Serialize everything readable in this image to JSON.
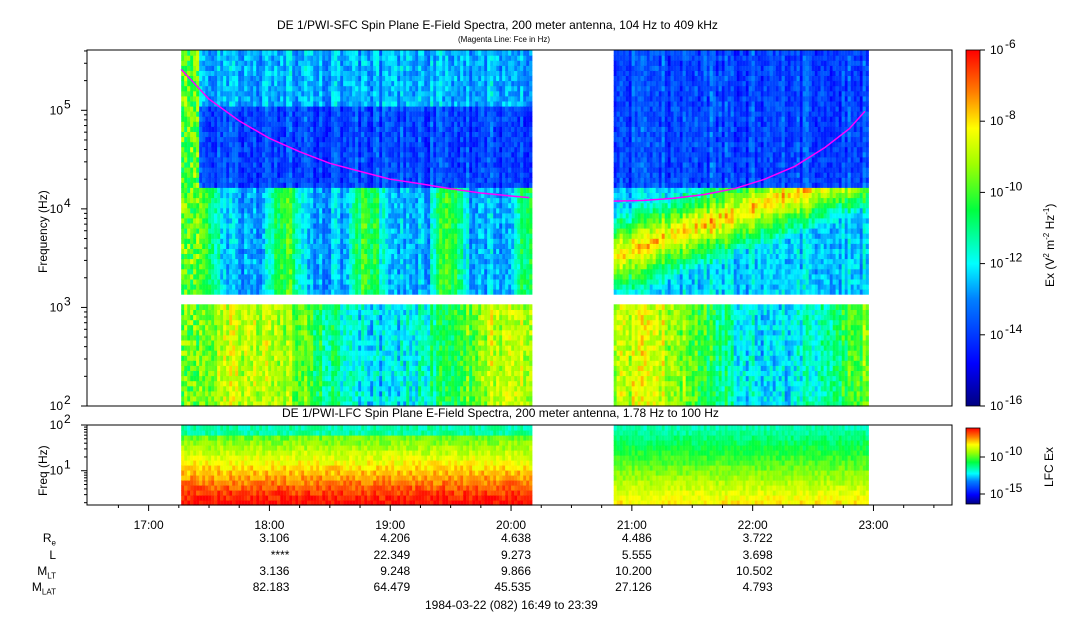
{
  "chart_data": [
    {
      "type": "heatmap",
      "title": "DE 1/PWI-SFC  Spin Plane E-Field Spectra, 200 meter antenna, 104 Hz to 409 kHz",
      "subtitle": "(Magenta Line: Fce in Hz)",
      "ylabel": "Frequency (Hz)",
      "yscale": "log",
      "ylim": [
        100,
        409000
      ],
      "yticks": [
        {
          "base": "10",
          "exp": "2",
          "value": 100
        },
        {
          "base": "10",
          "exp": "3",
          "value": 1000
        },
        {
          "base": "10",
          "exp": "4",
          "value": 10000
        },
        {
          "base": "10",
          "exp": "5",
          "value": 100000
        }
      ],
      "xlim_hours": [
        16.49,
        23.65
      ],
      "data_segments_hours": [
        [
          17.27,
          20.17
        ],
        [
          20.85,
          22.95
        ]
      ],
      "colorbar": {
        "label": "Ex (V² m⁻² Hz⁻¹)",
        "label_parts": {
          "a": "Ex (V",
          "b": "2",
          "c": " m",
          "d": "-2",
          "e": " Hz",
          "f": "-1",
          "g": ")"
        },
        "ticks": [
          {
            "base": "10",
            "exp": "-6",
            "value": 1e-06
          },
          {
            "base": "10",
            "exp": "-8",
            "value": 1e-08
          },
          {
            "base": "10",
            "exp": "-10",
            "value": 1e-10
          },
          {
            "base": "10",
            "exp": "-12",
            "value": 1e-12
          },
          {
            "base": "10",
            "exp": "-14",
            "value": 1e-14
          },
          {
            "base": "10",
            "exp": "-16",
            "value": 1e-16
          }
        ],
        "range": [
          1e-16,
          1e-06
        ]
      },
      "fce_line": {
        "name": "Fce",
        "color": "#ff00ff",
        "series": [
          {
            "hours": [
              17.27,
              17.5,
              17.75,
              18.0,
              18.25,
              18.5,
              18.75,
              19.0,
              19.25,
              19.5,
              19.75,
              20.0,
              20.15
            ],
            "freq_hz": [
              260000,
              130000,
              78000,
              52000,
              38000,
              29000,
              24000,
              20000,
              18000,
              16000,
              14500,
              13500,
              13000
            ]
          },
          {
            "hours": [
              20.85,
              21.1,
              21.35,
              21.6,
              21.85,
              22.1,
              22.35,
              22.6,
              22.8,
              22.93
            ],
            "freq_hz": [
              12000,
              12200,
              12800,
              14000,
              16000,
              20000,
              27000,
              42000,
              65000,
              98000
            ]
          }
        ]
      }
    },
    {
      "type": "heatmap",
      "title": "DE 1/PWI-LFC  Spin Plane E-Field Spectra, 200 meter antenna, 1.78 Hz to 100 Hz",
      "ylabel": "Freq (Hz)",
      "yscale": "log",
      "ylim": [
        1.78,
        100
      ],
      "yticks": [
        {
          "base": "10",
          "exp": "1",
          "value": 10
        },
        {
          "base": "10",
          "exp": "2",
          "value": 100
        }
      ],
      "data_segments_hours": [
        [
          17.27,
          20.17
        ],
        [
          20.85,
          22.95
        ]
      ],
      "colorbar": {
        "label": "LFC Ex",
        "ticks": [
          {
            "base": "10",
            "exp": "-10",
            "value": 1e-10
          },
          {
            "base": "10",
            "exp": "-15",
            "value": 1e-15
          }
        ]
      }
    }
  ],
  "x_axis": {
    "tick_labels": [
      {
        "label": "17:00",
        "hour": 17
      },
      {
        "label": "18:00",
        "hour": 18
      },
      {
        "label": "19:00",
        "hour": 19
      },
      {
        "label": "20:00",
        "hour": 20
      },
      {
        "label": "21:00",
        "hour": 21
      },
      {
        "label": "22:00",
        "hour": 22
      },
      {
        "label": "23:00",
        "hour": 23
      }
    ]
  },
  "ephemeris": {
    "rows": [
      {
        "label": "R",
        "sub": "e",
        "values": [
          "3.106",
          "4.206",
          "4.638",
          "4.486",
          "3.722"
        ]
      },
      {
        "label": "L",
        "sub": "",
        "values": [
          "****",
          "22.349",
          "9.273",
          "5.555",
          "3.698"
        ]
      },
      {
        "label": "M",
        "sub": "LT",
        "values": [
          "3.136",
          "9.248",
          "9.866",
          "10.200",
          "10.502"
        ]
      },
      {
        "label": "M",
        "sub": "LAT",
        "values": [
          "82.183",
          "64.479",
          "45.535",
          "27.126",
          "4.793"
        ]
      }
    ],
    "hours": [
      18,
      19,
      20,
      21,
      22
    ]
  },
  "footer": "1984-03-22 (082) 16:49 to 23:39",
  "colors": {
    "fce": "#ff00ff",
    "background": "#ffffff"
  }
}
